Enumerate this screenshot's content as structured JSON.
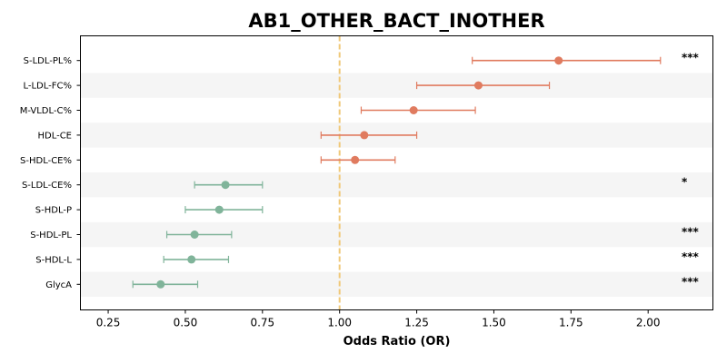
{
  "chart_data": {
    "type": "forest",
    "title": "AB1_OTHER_BACT_INOTHER",
    "xlabel": "Odds Ratio (OR)",
    "ylabel": "",
    "xlim": [
      0.16,
      2.21
    ],
    "xticks": [
      0.25,
      0.5,
      0.75,
      1.0,
      1.25,
      1.5,
      1.75,
      2.0
    ],
    "xtick_labels": [
      "0.25",
      "0.50",
      "0.75",
      "1.00",
      "1.25",
      "1.50",
      "1.75",
      "2.00"
    ],
    "reference_line": 1.0,
    "grid": false,
    "colors": {
      "positive": "#e07b5f",
      "negative": "#80b49a",
      "reference": "#f0c878",
      "band": "#f5f5f5"
    },
    "rows": [
      {
        "label": "S-LDL-PL%",
        "or": 1.71,
        "ci_low": 1.43,
        "ci_high": 2.04,
        "sig": "***"
      },
      {
        "label": "L-LDL-FC%",
        "or": 1.45,
        "ci_low": 1.25,
        "ci_high": 1.68,
        "sig": ""
      },
      {
        "label": "M-VLDL-C%",
        "or": 1.24,
        "ci_low": 1.07,
        "ci_high": 1.44,
        "sig": ""
      },
      {
        "label": "HDL-CE",
        "or": 1.08,
        "ci_low": 0.94,
        "ci_high": 1.25,
        "sig": ""
      },
      {
        "label": "S-HDL-CE%",
        "or": 1.05,
        "ci_low": 0.94,
        "ci_high": 1.18,
        "sig": ""
      },
      {
        "label": "S-LDL-CE%",
        "or": 0.63,
        "ci_low": 0.53,
        "ci_high": 0.75,
        "sig": "*"
      },
      {
        "label": "S-HDL-P",
        "or": 0.61,
        "ci_low": 0.5,
        "ci_high": 0.75,
        "sig": ""
      },
      {
        "label": "S-HDL-PL",
        "or": 0.53,
        "ci_low": 0.44,
        "ci_high": 0.65,
        "sig": "***"
      },
      {
        "label": "S-HDL-L",
        "or": 0.52,
        "ci_low": 0.43,
        "ci_high": 0.64,
        "sig": "***"
      },
      {
        "label": "GlycA",
        "or": 0.42,
        "ci_low": 0.33,
        "ci_high": 0.54,
        "sig": "***"
      }
    ]
  }
}
